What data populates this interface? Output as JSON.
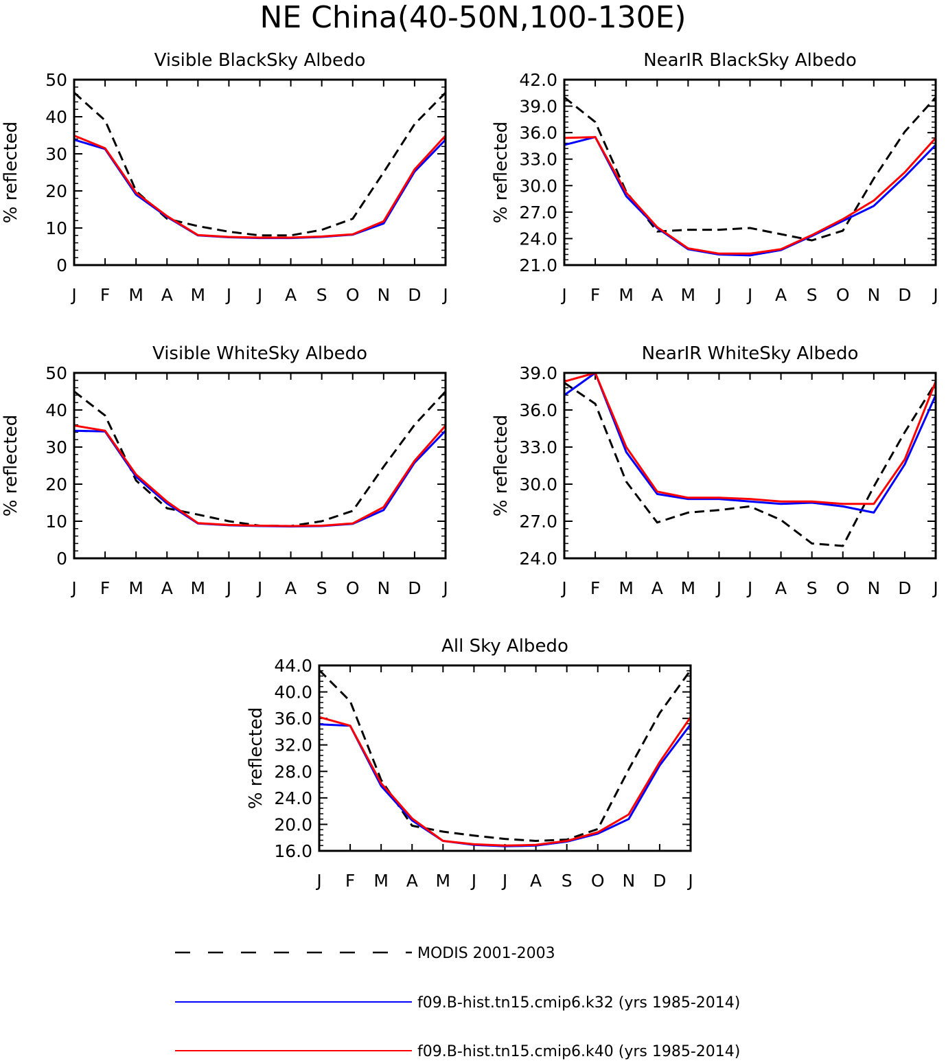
{
  "figure": {
    "title": "NE China(40-50N,100-130E)"
  },
  "legend": [
    {
      "name": "MODIS 2001-2003",
      "color": "#000000",
      "dash": "dashed"
    },
    {
      "name": "f09.B-hist.tn15.cmip6.k32 (yrs 1985-2014)",
      "color": "#0000ff",
      "dash": "solid"
    },
    {
      "name": "f09.B-hist.tn15.cmip6.k40 (yrs 1985-2014)",
      "color": "#ff0000",
      "dash": "solid"
    }
  ],
  "chart_data": [
    {
      "type": "line",
      "title": "Visible BlackSky Albedo",
      "ylabel": "% reflected",
      "categories": [
        "J",
        "F",
        "M",
        "A",
        "M",
        "J",
        "J",
        "A",
        "S",
        "O",
        "N",
        "D",
        "J"
      ],
      "ylim": [
        0,
        50
      ],
      "yticks": [
        "0",
        "10",
        "20",
        "30",
        "40",
        "50"
      ],
      "series": [
        {
          "name": "MODIS 2001-2003",
          "color": "#000000",
          "dash": "dashed",
          "values": [
            46.5,
            39,
            20,
            12.5,
            10.5,
            9,
            8,
            8,
            9.5,
            12.5,
            25,
            38,
            46.5
          ]
        },
        {
          "name": "f09.B-hist.tn15.cmip6.k32 (yrs 1985-2014)",
          "color": "#0000ff",
          "dash": "solid",
          "values": [
            33.8,
            31.3,
            19,
            13,
            8,
            7.5,
            7.3,
            7.3,
            7.6,
            8.2,
            11.2,
            25.2,
            33.8
          ]
        },
        {
          "name": "f09.B-hist.tn15.cmip6.k40 (yrs 1985-2014)",
          "color": "#ff0000",
          "dash": "solid",
          "values": [
            34.9,
            31.5,
            19.5,
            13.2,
            8.1,
            7.6,
            7.4,
            7.4,
            7.7,
            8.3,
            11.8,
            25.8,
            34.9
          ]
        }
      ]
    },
    {
      "type": "line",
      "title": "NearIR BlackSky Albedo",
      "ylabel": "% reflected",
      "categories": [
        "J",
        "F",
        "M",
        "A",
        "M",
        "J",
        "J",
        "A",
        "S",
        "O",
        "N",
        "D",
        "J"
      ],
      "ylim": [
        21.0,
        42.0
      ],
      "yticks": [
        "21.0",
        "24.0",
        "27.0",
        "30.0",
        "33.0",
        "36.0",
        "39.0",
        "42.0"
      ],
      "series": [
        {
          "name": "MODIS 2001-2003",
          "color": "#000000",
          "dash": "dashed",
          "values": [
            40,
            37.2,
            29.3,
            24.8,
            25,
            25,
            25.2,
            24.5,
            23.8,
            24.9,
            30.8,
            36.1,
            40
          ]
        },
        {
          "name": "f09.B-hist.tn15.cmip6.k32 (yrs 1985-2014)",
          "color": "#0000ff",
          "dash": "solid",
          "values": [
            34.6,
            35.5,
            28.8,
            25.2,
            22.8,
            22.2,
            22.1,
            22.7,
            24.3,
            26,
            27.7,
            31,
            34.6
          ]
        },
        {
          "name": "f09.B-hist.tn15.cmip6.k40 (yrs 1985-2014)",
          "color": "#ff0000",
          "dash": "solid",
          "values": [
            35.4,
            35.5,
            29.2,
            25.3,
            22.9,
            22.3,
            22.3,
            22.8,
            24.4,
            26.2,
            28.3,
            31.5,
            35.4
          ]
        }
      ]
    },
    {
      "type": "line",
      "title": "Visible WhiteSky Albedo",
      "ylabel": "% reflected",
      "categories": [
        "J",
        "F",
        "M",
        "A",
        "M",
        "J",
        "J",
        "A",
        "S",
        "O",
        "N",
        "D",
        "J"
      ],
      "ylim": [
        0,
        50
      ],
      "yticks": [
        "0",
        "10",
        "20",
        "30",
        "40",
        "50"
      ],
      "series": [
        {
          "name": "MODIS 2001-2003",
          "color": "#000000",
          "dash": "dashed",
          "values": [
            45,
            38.5,
            21,
            13.5,
            11.8,
            10,
            8.8,
            8.7,
            10,
            12.8,
            24.7,
            36,
            45
          ]
        },
        {
          "name": "f09.B-hist.tn15.cmip6.k32 (yrs 1985-2014)",
          "color": "#0000ff",
          "dash": "solid",
          "values": [
            34.4,
            34.2,
            22,
            14.8,
            9.4,
            8.9,
            8.7,
            8.6,
            8.7,
            9.3,
            13,
            25.8,
            34.4
          ]
        },
        {
          "name": "f09.B-hist.tn15.cmip6.k40 (yrs 1985-2014)",
          "color": "#ff0000",
          "dash": "solid",
          "values": [
            35.8,
            34.4,
            22.6,
            15.3,
            9.5,
            9,
            8.8,
            8.7,
            8.8,
            9.4,
            13.8,
            26.3,
            35.8
          ]
        }
      ]
    },
    {
      "type": "line",
      "title": "NearIR WhiteSky Albedo",
      "ylabel": "% reflected",
      "categories": [
        "J",
        "F",
        "M",
        "A",
        "M",
        "J",
        "J",
        "A",
        "S",
        "O",
        "N",
        "D",
        "J"
      ],
      "ylim": [
        24.0,
        39.0
      ],
      "yticks": [
        "24.0",
        "27.0",
        "30.0",
        "33.0",
        "36.0",
        "39.0"
      ],
      "series": [
        {
          "name": "MODIS 2001-2003",
          "color": "#000000",
          "dash": "dashed",
          "values": [
            38.2,
            36.5,
            30.2,
            26.9,
            27.7,
            27.9,
            28.2,
            27.1,
            25.2,
            25,
            29.8,
            34.2,
            38.2
          ]
        },
        {
          "name": "f09.B-hist.tn15.cmip6.k32 (yrs 1985-2014)",
          "color": "#0000ff",
          "dash": "solid",
          "values": [
            37.2,
            39,
            32.6,
            29.2,
            28.8,
            28.8,
            28.6,
            28.4,
            28.5,
            28.2,
            27.7,
            31.6,
            37.2
          ]
        },
        {
          "name": "f09.B-hist.tn15.cmip6.k40 (yrs 1985-2014)",
          "color": "#ff0000",
          "dash": "solid",
          "values": [
            38.3,
            39,
            33,
            29.4,
            28.9,
            28.9,
            28.8,
            28.6,
            28.6,
            28.4,
            28.4,
            32,
            38.3
          ]
        }
      ]
    },
    {
      "type": "line",
      "title": "All Sky Albedo",
      "ylabel": "% reflected",
      "categories": [
        "J",
        "F",
        "M",
        "A",
        "M",
        "J",
        "J",
        "A",
        "S",
        "O",
        "N",
        "D",
        "J"
      ],
      "ylim": [
        16.0,
        44.0
      ],
      "yticks": [
        "16.0",
        "20.0",
        "24.0",
        "28.0",
        "32.0",
        "36.0",
        "40.0",
        "44.0"
      ],
      "series": [
        {
          "name": "MODIS 2001-2003",
          "color": "#000000",
          "dash": "dashed",
          "values": [
            43.3,
            38.6,
            26.7,
            19.8,
            18.9,
            18.3,
            17.8,
            17.5,
            17.7,
            19.3,
            28.3,
            36.8,
            43.3
          ]
        },
        {
          "name": "f09.B-hist.tn15.cmip6.k32 (yrs 1985-2014)",
          "color": "#0000ff",
          "dash": "solid",
          "values": [
            35.1,
            34.9,
            25.8,
            20.6,
            17.5,
            16.9,
            16.7,
            16.8,
            17.4,
            18.6,
            20.8,
            28.9,
            35.1
          ]
        },
        {
          "name": "f09.B-hist.tn15.cmip6.k40 (yrs 1985-2014)",
          "color": "#ff0000",
          "dash": "solid",
          "values": [
            36.2,
            34.9,
            26.2,
            20.9,
            17.5,
            17,
            16.8,
            16.9,
            17.5,
            18.8,
            21.5,
            29.4,
            36.2
          ]
        }
      ]
    }
  ]
}
